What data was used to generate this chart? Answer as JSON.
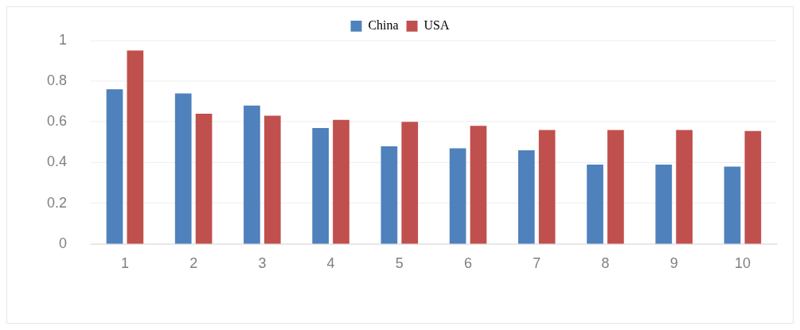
{
  "chart_data": {
    "type": "bar",
    "categories": [
      "1",
      "2",
      "3",
      "4",
      "5",
      "6",
      "7",
      "8",
      "9",
      "10"
    ],
    "series": [
      {
        "name": "China",
        "color": "#4f81bd",
        "values": [
          0.76,
          0.74,
          0.68,
          0.57,
          0.48,
          0.47,
          0.46,
          0.39,
          0.39,
          0.38
        ]
      },
      {
        "name": "USA",
        "color": "#c0504d",
        "values": [
          0.95,
          0.64,
          0.63,
          0.61,
          0.6,
          0.58,
          0.56,
          0.56,
          0.56,
          0.555
        ]
      }
    ],
    "ylim": [
      0,
      1
    ],
    "yticks": [
      0,
      0.2,
      0.4,
      0.6,
      0.8,
      1
    ],
    "grid": "y",
    "legend": "top"
  }
}
